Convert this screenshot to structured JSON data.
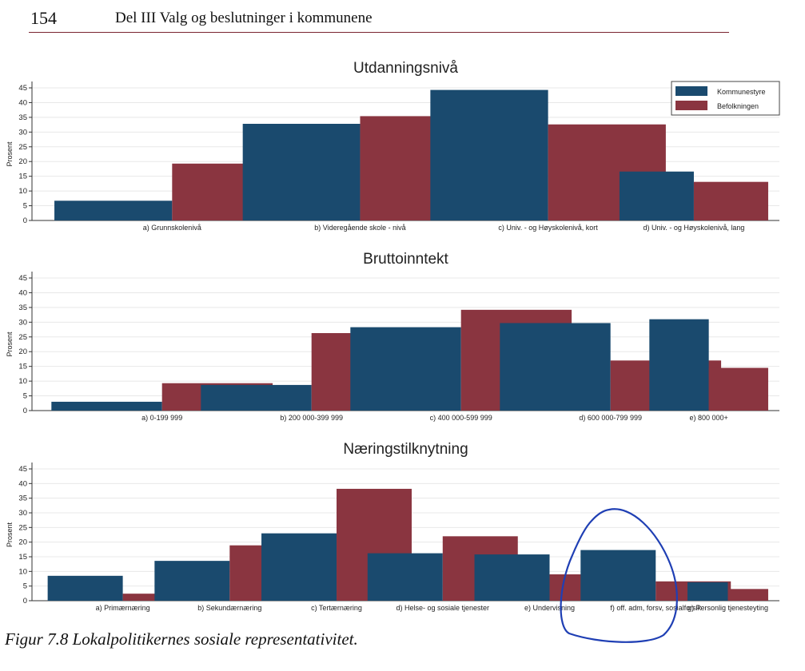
{
  "page": {
    "number": "154",
    "header": "Del III  Valg og beslutninger i kommunene",
    "caption": "Figur 7.8 Lokalpolitikernes sosiale representativitet."
  },
  "colors": {
    "kommunestyre": "#1a4a6e",
    "befolkningen": "#8a3540",
    "grid": "#e8e8e8",
    "text": "#222222"
  },
  "legend": {
    "placement": "top-right",
    "items": [
      "Kommunestyre",
      "Befolkningen"
    ]
  },
  "chart_data": [
    {
      "type": "bar",
      "title": "Utdanningsnivå",
      "ylabel": "Prosent",
      "ylim": [
        0,
        45
      ],
      "yticks": [
        "0",
        "5",
        "10",
        "15",
        "20",
        "25",
        "30",
        "35",
        "40",
        "45"
      ],
      "categories": [
        "a) Grunnskolenivå",
        "b) Videregående skole - nivå",
        "c) Univ. - og Høyskolenivå, kort",
        "d) Univ. - og Høyskolenivå, lang"
      ],
      "series": [
        {
          "name": "Kommunestyre",
          "values": [
            6.7,
            32.8,
            44.3,
            16.6
          ]
        },
        {
          "name": "Befolkningen",
          "values": [
            19.3,
            35.4,
            32.6,
            13.1
          ]
        }
      ]
    },
    {
      "type": "bar",
      "title": "Bruttoinntekt",
      "ylabel": "Prosent",
      "ylim": [
        0,
        45
      ],
      "yticks": [
        "0",
        "5",
        "10",
        "15",
        "20",
        "25",
        "30",
        "35",
        "40",
        "45"
      ],
      "categories": [
        "a) 0-199 999",
        "b) 200 000-399 999",
        "c) 400 000-599 999",
        "d) 600 000-799 999",
        "e) 800 000+"
      ],
      "series": [
        {
          "name": "Kommunestyre",
          "values": [
            3.0,
            8.7,
            28.3,
            29.7,
            31.0
          ]
        },
        {
          "name": "Befolkningen",
          "values": [
            9.3,
            26.3,
            34.2,
            17.0,
            14.5
          ]
        }
      ]
    },
    {
      "type": "bar",
      "title": "Næringstilknytning",
      "ylabel": "Prosent",
      "ylim": [
        0,
        45
      ],
      "yticks": [
        "0",
        "5",
        "10",
        "15",
        "20",
        "25",
        "30",
        "35",
        "40",
        "45"
      ],
      "categories": [
        "a) Primærnæring",
        "b) Sekundærnæring",
        "c) Tertærnæring",
        "d) Helse- og sosiale tjenester",
        "e) Undervisning",
        "f) off. adm, forsv, sosialforsik",
        "g) Personlig tjenesteyting"
      ],
      "series": [
        {
          "name": "Kommunestyre",
          "values": [
            8.5,
            13.6,
            23.0,
            16.2,
            15.8,
            17.3,
            6.3
          ]
        },
        {
          "name": "Befolkningen",
          "values": [
            2.4,
            18.9,
            38.2,
            22.0,
            9.0,
            6.6,
            4.0
          ]
        }
      ]
    }
  ]
}
